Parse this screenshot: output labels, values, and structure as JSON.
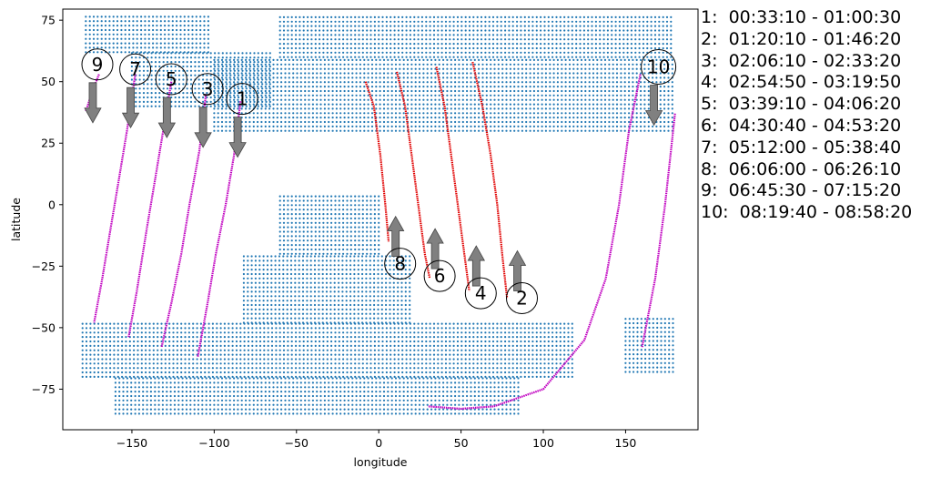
{
  "chart_data": {
    "type": "scatter",
    "title": "",
    "xlabel": "longitude",
    "ylabel": "latitude",
    "xlim": [
      -192,
      194
    ],
    "ylim": [
      -91.5,
      79.5
    ],
    "xticks": [
      -150,
      -100,
      -50,
      0,
      50,
      100,
      150
    ],
    "yticks": [
      -75,
      -50,
      -25,
      0,
      25,
      50,
      75
    ],
    "grid": false,
    "colors": {
      "land_points": "#1f77b4",
      "track_day": "#c000c0",
      "track_highlight": "#e00000",
      "arrow": "#808080"
    },
    "land_regions": [
      {
        "lon": [
          -178,
          -102
        ],
        "lat": [
          62,
          77
        ]
      },
      {
        "lon": [
          -150,
          -65
        ],
        "lat": [
          40,
          62
        ]
      },
      {
        "lon": [
          -60,
          180
        ],
        "lat": [
          60,
          77
        ]
      },
      {
        "lon": [
          -100,
          180
        ],
        "lat": [
          30,
          60
        ]
      },
      {
        "lon": [
          -60,
          0
        ],
        "lat": [
          -20,
          4
        ]
      },
      {
        "lon": [
          -82,
          20
        ],
        "lat": [
          -48,
          -20
        ]
      },
      {
        "lon": [
          -180,
          120
        ],
        "lat": [
          -70,
          -48
        ]
      },
      {
        "lon": [
          -160,
          85
        ],
        "lat": [
          -85,
          -70
        ]
      },
      {
        "lon": [
          150,
          180
        ],
        "lat": [
          -68,
          -45
        ]
      }
    ],
    "series": [
      {
        "id": 1,
        "highlight": false,
        "points": [
          [
            -84,
            42
          ],
          [
            -88,
            20
          ],
          [
            -93,
            0
          ],
          [
            -99,
            -20
          ],
          [
            -104,
            -40
          ],
          [
            -110,
            -62
          ]
        ]
      },
      {
        "id": 2,
        "highlight": true,
        "points": [
          [
            57,
            58
          ],
          [
            63,
            40
          ],
          [
            68,
            20
          ],
          [
            72,
            0
          ],
          [
            75,
            -20
          ],
          [
            78,
            -38
          ]
        ]
      },
      {
        "id": 3,
        "highlight": false,
        "points": [
          [
            -105,
            45
          ],
          [
            -109,
            22
          ],
          [
            -115,
            0
          ],
          [
            -120,
            -20
          ],
          [
            -126,
            -40
          ],
          [
            -132,
            -58
          ]
        ]
      },
      {
        "id": 4,
        "highlight": true,
        "points": [
          [
            35,
            56
          ],
          [
            40,
            40
          ],
          [
            44,
            20
          ],
          [
            48,
            0
          ],
          [
            52,
            -20
          ],
          [
            55,
            -35
          ]
        ]
      },
      {
        "id": 5,
        "highlight": false,
        "points": [
          [
            -126,
            50
          ],
          [
            -131,
            30
          ],
          [
            -136,
            10
          ],
          [
            -141,
            -10
          ],
          [
            -147,
            -35
          ],
          [
            -152,
            -54
          ]
        ]
      },
      {
        "id": 6,
        "highlight": true,
        "points": [
          [
            11,
            54
          ],
          [
            16,
            40
          ],
          [
            20,
            20
          ],
          [
            24,
            0
          ],
          [
            28,
            -20
          ],
          [
            31,
            -30
          ]
        ]
      },
      {
        "id": 7,
        "highlight": false,
        "points": [
          [
            -148,
            53
          ],
          [
            -153,
            30
          ],
          [
            -158,
            10
          ],
          [
            -163,
            -10
          ],
          [
            -168,
            -30
          ],
          [
            -173,
            -48
          ]
        ]
      },
      {
        "id": 8,
        "highlight": true,
        "points": [
          [
            -8,
            50
          ],
          [
            -3,
            40
          ],
          [
            1,
            20
          ],
          [
            4,
            0
          ],
          [
            6,
            -15
          ]
        ]
      },
      {
        "id": 9,
        "highlight": false,
        "points": [
          [
            -170,
            53
          ],
          [
            -173,
            48
          ],
          [
            -175,
            44
          ],
          [
            -178,
            38
          ]
        ]
      },
      {
        "id": 10,
        "highlight": false,
        "points": [
          [
            159,
            53
          ],
          [
            152,
            30
          ],
          [
            146,
            0
          ],
          [
            138,
            -30
          ],
          [
            125,
            -55
          ],
          [
            100,
            -75
          ],
          [
            70,
            -82
          ],
          [
            50,
            -83
          ],
          [
            30,
            -82
          ]
        ]
      },
      {
        "id": 10,
        "highlight": false,
        "points": [
          [
            180,
            37
          ],
          [
            174,
            0
          ],
          [
            168,
            -30
          ],
          [
            160,
            -58
          ]
        ]
      }
    ],
    "annotations": [
      {
        "label": "1",
        "lon": -83,
        "lat": 43,
        "arrow": "down"
      },
      {
        "label": "2",
        "lon": 87,
        "lat": -38,
        "arrow": "up"
      },
      {
        "label": "3",
        "lon": -104,
        "lat": 47,
        "arrow": "down"
      },
      {
        "label": "4",
        "lon": 62,
        "lat": -36,
        "arrow": "up"
      },
      {
        "label": "5",
        "lon": -126,
        "lat": 51,
        "arrow": "down"
      },
      {
        "label": "6",
        "lon": 37,
        "lat": -29,
        "arrow": "up"
      },
      {
        "label": "7",
        "lon": -148,
        "lat": 55,
        "arrow": "down"
      },
      {
        "label": "8",
        "lon": 13,
        "lat": -24,
        "arrow": "up"
      },
      {
        "label": "9",
        "lon": -171,
        "lat": 57,
        "arrow": "down"
      },
      {
        "label": "10",
        "lon": 170,
        "lat": 56,
        "arrow": "down"
      }
    ],
    "legend": [
      "1:  00:33:10 - 01:00:30",
      "2:  01:20:10 - 01:46:20",
      "3:  02:06:10 - 02:33:20",
      "4:  02:54:50 - 03:19:50",
      "5:  03:39:10 - 04:06:20",
      "6:  04:30:40 - 04:53:20",
      "7:  05:12:00 - 05:38:40",
      "8:  06:06:00 - 06:26:10",
      "9:  06:45:30 - 07:15:20",
      "10:  08:19:40 - 08:58:20"
    ],
    "legend_placement": "right"
  }
}
